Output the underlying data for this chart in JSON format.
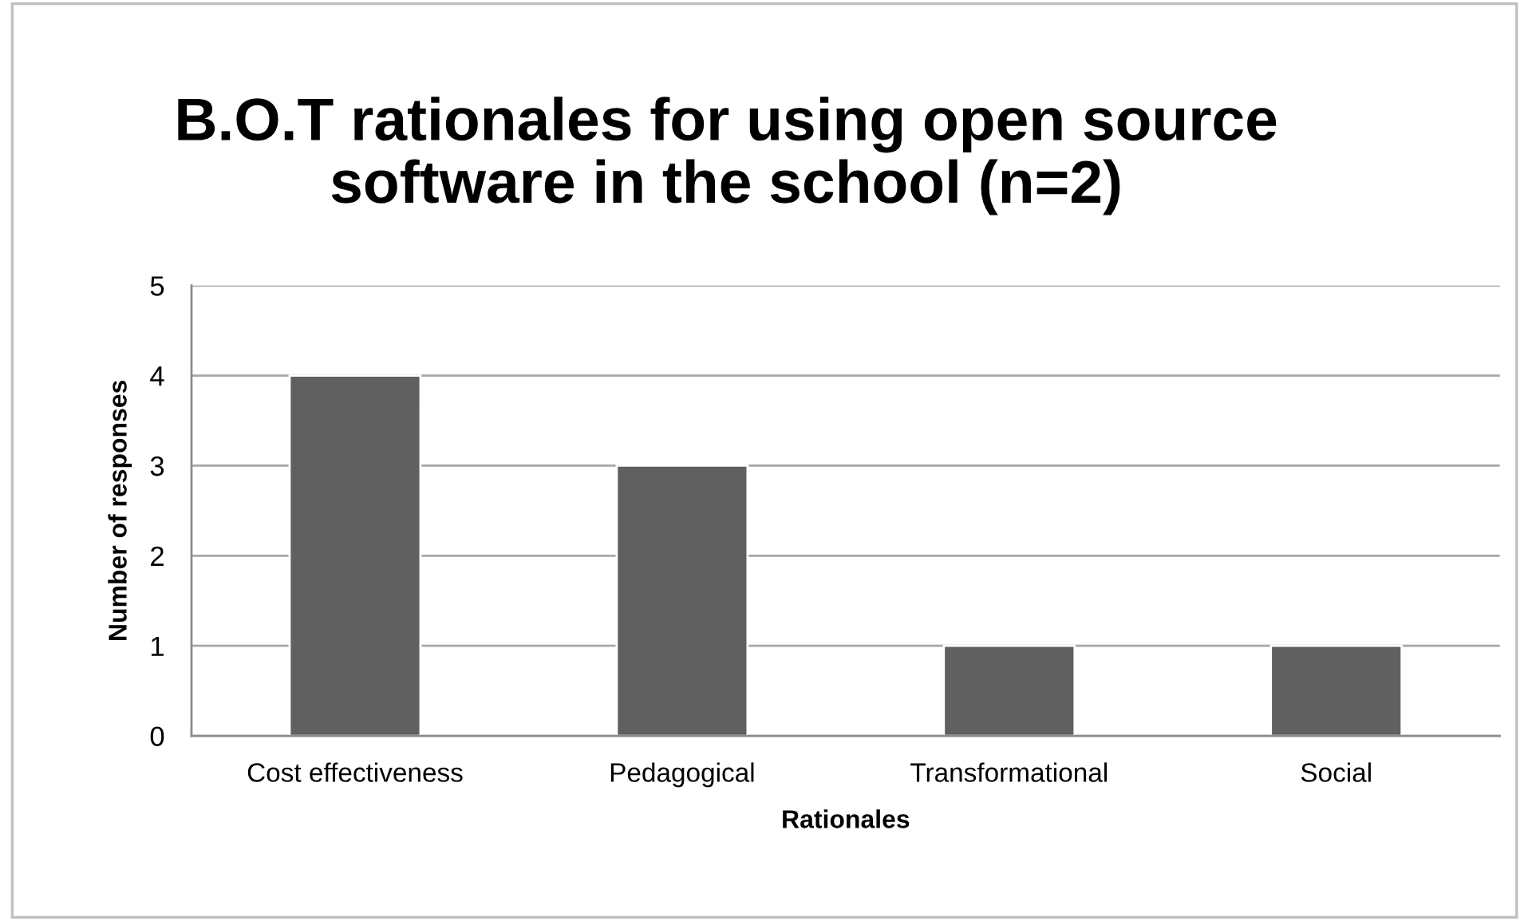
{
  "chart_data": {
    "type": "bar",
    "title": "B.O.T rationales for using open source\nsoftware in the school (n=2)",
    "xlabel": "Rationales",
    "ylabel": "Number of responses",
    "categories": [
      "Cost effectiveness",
      "Pedagogical",
      "Transformational",
      "Social"
    ],
    "values": [
      4,
      3,
      1,
      1
    ],
    "color": "#606060",
    "ylim": [
      0,
      5
    ],
    "yticks": [
      0,
      1,
      2,
      3,
      4,
      5
    ],
    "grid": "y"
  }
}
